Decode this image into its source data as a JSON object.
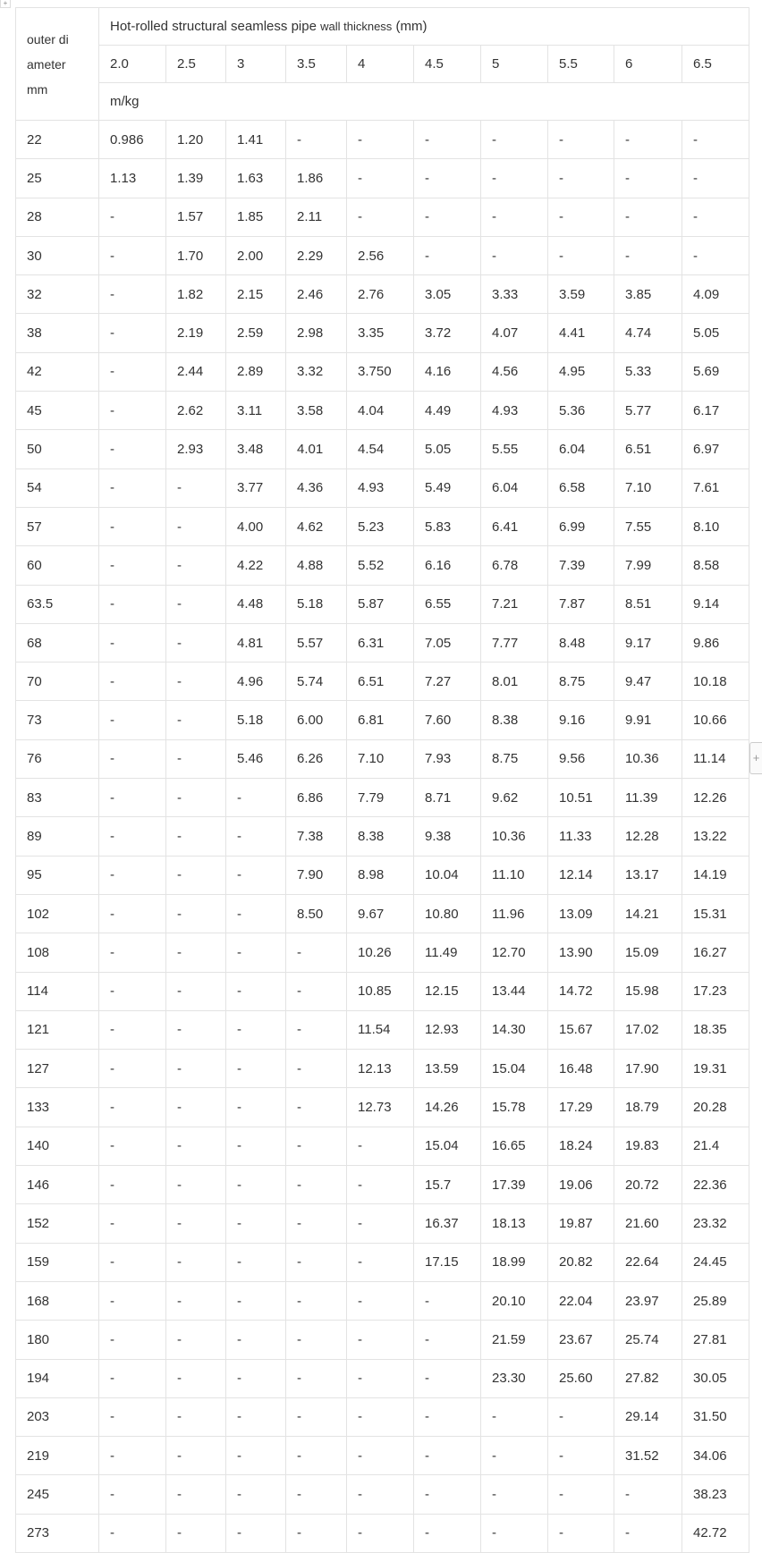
{
  "header": {
    "diameter_label_lines": [
      "outer di",
      "ameter",
      "mm"
    ],
    "title_main": "Hot-rolled  structural  seamless  pipe",
    "title_small": "wall  thickness",
    "title_unit": "(mm)",
    "thicknesses": [
      "2.0",
      "2.5",
      "3",
      "3.5",
      "4",
      "4.5",
      "5",
      "5.5",
      "6",
      "6.5"
    ],
    "unit_row": "m/kg"
  },
  "controls": {
    "add_icon": "+",
    "corner_icon": "+"
  },
  "rows": [
    {
      "d": "22",
      "v": [
        "0.986",
        "1.20",
        "1.41",
        "-",
        "-",
        "-",
        "-",
        "-",
        "-",
        "-"
      ]
    },
    {
      "d": "25",
      "v": [
        "1.13",
        "1.39",
        "1.63",
        "1.86",
        "-",
        "-",
        "-",
        "-",
        "-",
        "-"
      ]
    },
    {
      "d": "28",
      "v": [
        "-",
        "1.57",
        "1.85",
        "2.11",
        "-",
        "-",
        "-",
        "-",
        "-",
        "-"
      ]
    },
    {
      "d": "30",
      "v": [
        "-",
        "1.70",
        "2.00",
        "2.29",
        "2.56",
        "-",
        "-",
        "-",
        "-",
        "-"
      ]
    },
    {
      "d": "32",
      "v": [
        "-",
        "1.82",
        "2.15",
        "2.46",
        "2.76",
        "3.05",
        "3.33",
        "3.59",
        "3.85",
        "4.09"
      ]
    },
    {
      "d": "38",
      "v": [
        "-",
        "2.19",
        "2.59",
        "2.98",
        "3.35",
        "3.72",
        "4.07",
        "4.41",
        "4.74",
        "5.05"
      ]
    },
    {
      "d": "42",
      "v": [
        "-",
        "2.44",
        "2.89",
        "3.32",
        "3.750",
        "4.16",
        "4.56",
        "4.95",
        "5.33",
        "5.69"
      ]
    },
    {
      "d": "45",
      "v": [
        "-",
        "2.62",
        "3.11",
        "3.58",
        "4.04",
        "4.49",
        "4.93",
        "5.36",
        "5.77",
        "6.17"
      ]
    },
    {
      "d": "50",
      "v": [
        "-",
        "2.93",
        "3.48",
        "4.01",
        "4.54",
        "5.05",
        "5.55",
        "6.04",
        "6.51",
        "6.97"
      ]
    },
    {
      "d": "54",
      "v": [
        "-",
        "-",
        "3.77",
        "4.36",
        "4.93",
        "5.49",
        "6.04",
        "6.58",
        "7.10",
        "7.61"
      ]
    },
    {
      "d": "57",
      "v": [
        "-",
        "-",
        "4.00",
        "4.62",
        "5.23",
        "5.83",
        "6.41",
        "6.99",
        "7.55",
        "8.10"
      ]
    },
    {
      "d": "60",
      "v": [
        "-",
        "-",
        "4.22",
        "4.88",
        "5.52",
        "6.16",
        "6.78",
        "7.39",
        "7.99",
        "8.58"
      ]
    },
    {
      "d": "63.5",
      "v": [
        "-",
        "-",
        "4.48",
        "5.18",
        "5.87",
        "6.55",
        "7.21",
        "7.87",
        "8.51",
        "9.14"
      ]
    },
    {
      "d": "68",
      "v": [
        "-",
        "-",
        "4.81",
        "5.57",
        "6.31",
        "7.05",
        "7.77",
        "8.48",
        "9.17",
        "9.86"
      ]
    },
    {
      "d": "70",
      "v": [
        "-",
        "-",
        "4.96",
        "5.74",
        "6.51",
        "7.27",
        "8.01",
        "8.75",
        "9.47",
        "10.18"
      ]
    },
    {
      "d": "73",
      "v": [
        "-",
        "-",
        "5.18",
        "6.00",
        "6.81",
        "7.60",
        "8.38",
        "9.16",
        "9.91",
        "10.66"
      ]
    },
    {
      "d": "76",
      "v": [
        "-",
        "-",
        "5.46",
        "6.26",
        "7.10",
        "7.93",
        "8.75",
        "9.56",
        "10.36",
        "11.14"
      ]
    },
    {
      "d": "83",
      "v": [
        "-",
        "-",
        "-",
        "6.86",
        "7.79",
        "8.71",
        "9.62",
        "10.51",
        "11.39",
        "12.26"
      ]
    },
    {
      "d": "89",
      "v": [
        "-",
        "-",
        "-",
        "7.38",
        "8.38",
        "9.38",
        "10.36",
        "11.33",
        "12.28",
        "13.22"
      ]
    },
    {
      "d": "95",
      "v": [
        "-",
        "-",
        "-",
        "7.90",
        "8.98",
        "10.04",
        "11.10",
        "12.14",
        "13.17",
        "14.19"
      ]
    },
    {
      "d": "102",
      "v": [
        "-",
        "-",
        "-",
        "8.50",
        "9.67",
        "10.80",
        "11.96",
        "13.09",
        "14.21",
        "15.31"
      ]
    },
    {
      "d": "108",
      "v": [
        "-",
        "-",
        "-",
        "-",
        "10.26",
        "11.49",
        "12.70",
        "13.90",
        "15.09",
        "16.27"
      ]
    },
    {
      "d": "114",
      "v": [
        "-",
        "-",
        "-",
        "-",
        "10.85",
        "12.15",
        "13.44",
        "14.72",
        "15.98",
        "17.23"
      ]
    },
    {
      "d": "121",
      "v": [
        "-",
        "-",
        "-",
        "-",
        "11.54",
        "12.93",
        "14.30",
        "15.67",
        "17.02",
        "18.35"
      ]
    },
    {
      "d": "127",
      "v": [
        "-",
        "-",
        "-",
        "-",
        "12.13",
        "13.59",
        "15.04",
        "16.48",
        "17.90",
        "19.31"
      ]
    },
    {
      "d": "133",
      "v": [
        "-",
        "-",
        "-",
        "-",
        "12.73",
        "14.26",
        "15.78",
        "17.29",
        "18.79",
        "20.28"
      ]
    },
    {
      "d": "140",
      "v": [
        "-",
        "-",
        "-",
        "-",
        "-",
        "15.04",
        "16.65",
        "18.24",
        "19.83",
        "21.4"
      ]
    },
    {
      "d": "146",
      "v": [
        "-",
        "-",
        "-",
        "-",
        "-",
        "15.7",
        "17.39",
        "19.06",
        "20.72",
        "22.36"
      ]
    },
    {
      "d": "152",
      "v": [
        "-",
        "-",
        "-",
        "-",
        "-",
        "16.37",
        "18.13",
        "19.87",
        "21.60",
        "23.32"
      ]
    },
    {
      "d": "159",
      "v": [
        "-",
        "-",
        "-",
        "-",
        "-",
        "17.15",
        "18.99",
        "20.82",
        "22.64",
        "24.45"
      ]
    },
    {
      "d": "168",
      "v": [
        "-",
        "-",
        "-",
        "-",
        "-",
        "-",
        "20.10",
        "22.04",
        "23.97",
        "25.89"
      ]
    },
    {
      "d": "180",
      "v": [
        "-",
        "-",
        "-",
        "-",
        "-",
        "-",
        "21.59",
        "23.67",
        "25.74",
        "27.81"
      ]
    },
    {
      "d": "194",
      "v": [
        "-",
        "-",
        "-",
        "-",
        "-",
        "-",
        "23.30",
        "25.60",
        "27.82",
        "30.05"
      ]
    },
    {
      "d": "203",
      "v": [
        "-",
        "-",
        "-",
        "-",
        "-",
        "-",
        "-",
        "-",
        "29.14",
        "31.50"
      ]
    },
    {
      "d": "219",
      "v": [
        "-",
        "-",
        "-",
        "-",
        "-",
        "-",
        "-",
        "-",
        "31.52",
        "34.06"
      ]
    },
    {
      "d": "245",
      "v": [
        "-",
        "-",
        "-",
        "-",
        "-",
        "-",
        "-",
        "-",
        "-",
        "38.23"
      ]
    },
    {
      "d": "273",
      "v": [
        "-",
        "-",
        "-",
        "-",
        "-",
        "-",
        "-",
        "-",
        "-",
        "42.72"
      ]
    }
  ]
}
